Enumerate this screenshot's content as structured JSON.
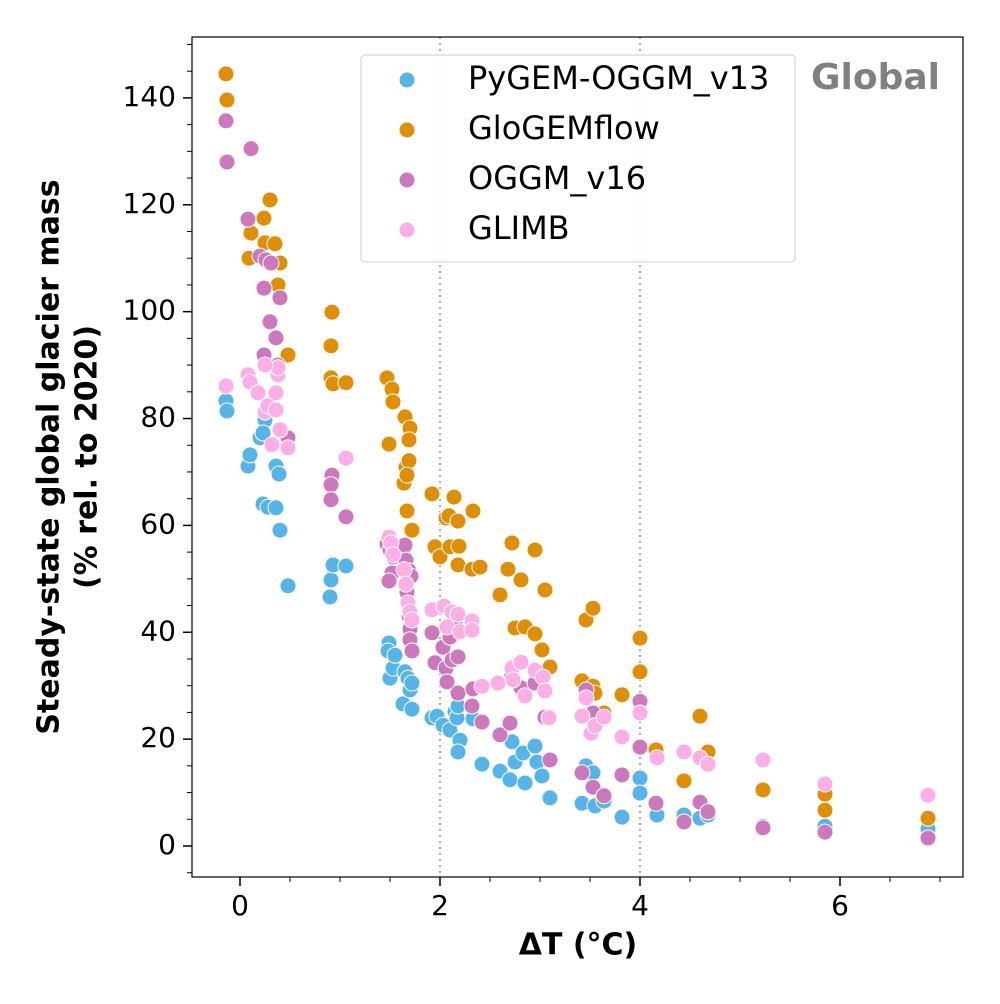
{
  "chart_data": {
    "type": "scatter",
    "xlabel": "ΔT (°C)",
    "ylabel": [
      "Steady-state global glacier mass",
      "(% rel. to 2020)"
    ],
    "annotation": "Global",
    "xlim": [
      -0.48,
      7.23
    ],
    "ylim": [
      -5.8,
      151.4
    ],
    "xticks": [
      0,
      2,
      4,
      6
    ],
    "yticks": [
      0,
      20,
      40,
      60,
      80,
      100,
      120,
      140
    ],
    "xminorticks": [
      0.5,
      1,
      1.5,
      2.5,
      3,
      3.5,
      4.5,
      5,
      5.5,
      6.5,
      7
    ],
    "yminorticks": [
      -5,
      5,
      10,
      15,
      25,
      30,
      35,
      45,
      50,
      55,
      65,
      70,
      75,
      85,
      90,
      95,
      105,
      110,
      115,
      125,
      130,
      135,
      145,
      150
    ],
    "vlines": [
      2,
      4
    ],
    "legend": "upper center",
    "series": [
      {
        "name": "PyGEM-OGGM_v13",
        "color": "#56b4e9",
        "x": [
          -0.14,
          -0.13,
          0.08,
          0.1,
          0.2,
          0.25,
          0.23,
          0.23,
          0.28,
          0.36,
          0.36,
          0.39,
          0.4,
          0.48,
          0.9,
          0.91,
          0.93,
          1.06,
          1.49,
          1.48,
          1.5,
          1.53,
          1.55,
          1.63,
          1.65,
          1.68,
          1.7,
          1.72,
          1.72,
          1.92,
          1.97,
          2.03,
          2.1,
          2.15,
          2.17,
          2.18,
          2.2,
          2.18,
          2.33,
          2.42,
          2.6,
          2.7,
          2.72,
          2.75,
          2.83,
          2.85,
          2.95,
          2.97,
          3.02,
          3.1,
          3.42,
          3.46,
          3.53,
          3.55,
          3.64,
          3.82,
          4.0,
          4.0,
          4.17,
          4.44,
          4.6,
          4.68,
          5.23,
          5.85,
          6.88
        ],
        "values": [
          83.3,
          81.4,
          71.1,
          73.2,
          76.4,
          79.7,
          77.3,
          64.0,
          63.4,
          63.3,
          71.1,
          69.6,
          59.1,
          48.7,
          46.6,
          49.8,
          52.6,
          52.4,
          38.0,
          36.5,
          31.4,
          33.3,
          35.7,
          26.6,
          32.6,
          31.4,
          29.2,
          30.5,
          25.6,
          24.0,
          24.3,
          22.6,
          21.7,
          25.1,
          24.0,
          26.2,
          19.8,
          17.6,
          23.8,
          15.3,
          14.0,
          12.4,
          19.5,
          15.7,
          17.4,
          11.8,
          18.7,
          15.7,
          13.1,
          9.0,
          8.0,
          15.0,
          13.7,
          7.5,
          8.4,
          5.4,
          12.7,
          9.9,
          5.8,
          5.8,
          5.2,
          5.8,
          3.7,
          3.7,
          3.2
        ]
      },
      {
        "name": "GloGEMflow",
        "color": "#de8f05",
        "x": [
          -0.14,
          -0.13,
          0.09,
          0.11,
          0.24,
          0.3,
          0.25,
          0.35,
          0.4,
          0.38,
          0.48,
          0.92,
          0.91,
          0.91,
          0.93,
          1.06,
          1.47,
          1.52,
          1.53,
          1.49,
          1.65,
          1.7,
          1.69,
          1.66,
          1.69,
          1.64,
          1.67,
          1.67,
          1.72,
          1.92,
          2.06,
          2.09,
          2.14,
          2.18,
          1.95,
          2.0,
          2.1,
          2.19,
          2.18,
          2.33,
          2.32,
          2.4,
          2.6,
          2.72,
          2.68,
          2.81,
          2.75,
          2.85,
          2.95,
          2.95,
          3.05,
          3.02,
          3.1,
          3.42,
          3.46,
          3.53,
          3.53,
          3.55,
          3.64,
          3.82,
          4.0,
          4.0,
          4.16,
          4.44,
          4.6,
          4.68,
          5.23,
          5.85,
          5.85,
          6.88
        ],
        "values": [
          144.5,
          139.6,
          110.0,
          114.7,
          117.5,
          120.9,
          112.9,
          112.7,
          109.1,
          105.0,
          91.9,
          99.9,
          93.6,
          87.6,
          86.5,
          86.7,
          87.6,
          85.5,
          83.1,
          75.2,
          80.3,
          78.2,
          76.0,
          70.9,
          72.1,
          67.9,
          69.4,
          62.7,
          59.1,
          65.9,
          61.4,
          61.8,
          65.3,
          60.8,
          56.0,
          54.1,
          56.0,
          56.1,
          52.6,
          62.7,
          51.8,
          52.2,
          47.0,
          56.7,
          51.8,
          49.8,
          40.8,
          41.0,
          55.4,
          39.7,
          47.9,
          36.7,
          33.5,
          30.9,
          42.3,
          44.5,
          29.9,
          28.6,
          24.9,
          28.3,
          38.9,
          32.6,
          18.0,
          12.2,
          24.3,
          17.6,
          10.5,
          9.7,
          6.7,
          5.2
        ]
      },
      {
        "name": "OGGM_v16",
        "color": "#cc78bc",
        "x": [
          -0.14,
          -0.13,
          0.11,
          0.08,
          0.2,
          0.26,
          0.31,
          0.24,
          0.4,
          0.3,
          0.36,
          0.24,
          0.38,
          0.48,
          0.92,
          0.91,
          0.91,
          1.06,
          1.47,
          1.5,
          1.53,
          1.52,
          1.49,
          1.65,
          1.66,
          1.69,
          1.71,
          1.67,
          1.69,
          1.7,
          1.7,
          1.72,
          1.92,
          1.95,
          2.03,
          2.06,
          2.1,
          2.12,
          2.15,
          2.18,
          2.07,
          2.18,
          2.33,
          2.32,
          2.42,
          2.6,
          2.7,
          2.72,
          2.81,
          2.95,
          3.05,
          3.1,
          3.42,
          3.46,
          3.53,
          3.53,
          3.64,
          3.82,
          4.0,
          4.0,
          4.16,
          4.44,
          4.6,
          4.68,
          5.23,
          5.85,
          6.88
        ],
        "values": [
          135.7,
          128.0,
          130.5,
          117.3,
          110.4,
          109.7,
          109.1,
          104.4,
          102.6,
          98.1,
          95.1,
          91.9,
          90.0,
          76.4,
          69.4,
          67.6,
          64.8,
          61.6,
          56.5,
          55.4,
          54.1,
          51.1,
          49.6,
          56.3,
          53.5,
          51.5,
          50.5,
          47.5,
          43.0,
          40.6,
          38.6,
          36.5,
          39.9,
          34.3,
          37.2,
          33.3,
          39.1,
          34.8,
          41.7,
          35.4,
          30.7,
          28.6,
          29.4,
          26.2,
          23.2,
          20.8,
          23.0,
          32.0,
          29.6,
          30.5,
          24.1,
          16.1,
          13.7,
          29.2,
          24.9,
          11.0,
          9.4,
          13.3,
          27.1,
          18.5,
          8.0,
          4.5,
          8.2,
          6.4,
          3.4,
          2.6,
          1.5
        ]
      },
      {
        "name": "GLIMB",
        "color": "#fbafe4",
        "x": [
          -0.14,
          0.08,
          0.1,
          0.18,
          0.25,
          0.28,
          0.32,
          0.36,
          0.36,
          0.38,
          0.38,
          0.4,
          0.48,
          0.25,
          1.06,
          1.49,
          1.51,
          1.53,
          1.64,
          1.66,
          1.68,
          1.7,
          1.72,
          1.92,
          2.04,
          2.12,
          2.18,
          2.32,
          2.07,
          2.2,
          2.32,
          2.42,
          2.58,
          2.72,
          2.81,
          2.73,
          2.85,
          2.95,
          3.03,
          3.05,
          3.09,
          3.42,
          3.46,
          3.51,
          3.55,
          3.64,
          3.82,
          4.0,
          4.17,
          4.44,
          4.6,
          4.68,
          5.23,
          5.85,
          6.88
        ],
        "values": [
          86.1,
          88.2,
          86.8,
          84.8,
          81.2,
          82.4,
          75.1,
          81.6,
          84.8,
          88.2,
          89.5,
          77.9,
          74.5,
          90.0,
          72.6,
          57.8,
          56.7,
          54.5,
          51.7,
          49.0,
          45.5,
          43.8,
          42.3,
          44.2,
          44.9,
          43.8,
          43.4,
          42.1,
          41.0,
          40.1,
          40.4,
          29.9,
          30.5,
          33.3,
          34.4,
          31.1,
          28.1,
          32.9,
          31.6,
          29.0,
          24.0,
          24.3,
          27.7,
          21.1,
          22.5,
          24.1,
          20.4,
          24.9,
          16.5,
          17.6,
          16.5,
          15.3,
          16.1,
          11.6,
          9.5
        ]
      }
    ]
  }
}
